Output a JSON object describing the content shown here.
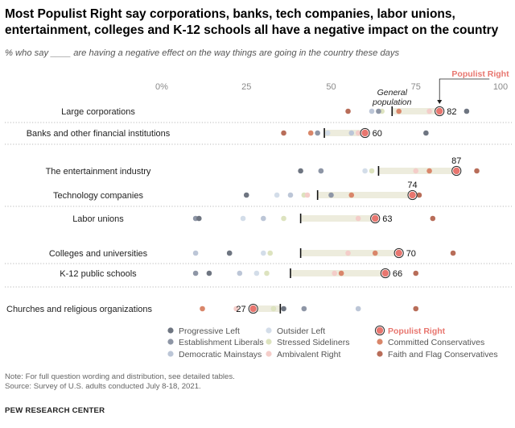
{
  "chart_data": {
    "type": "dot",
    "title": "Most Populist Right say corporations, banks, tech companies, labor unions, entertainment, colleges and K-12 schools all have a negative impact on the country",
    "subtitle": "% who say ____ are having a negative effect on the way things are going in the country these days",
    "x_ticks": [
      "0%",
      "25",
      "50",
      "75",
      "100"
    ],
    "xlim": [
      0,
      100
    ],
    "annotations": {
      "general_population": "General population",
      "populist_right": "Populist Right"
    },
    "colors": {
      "Progressive Left": "#6e7581",
      "Establishment Liberals": "#8e96a6",
      "Democratic Mainstays": "#bcc6d7",
      "Outsider Left": "#d3dde9",
      "Stressed Sideliners": "#dde3bf",
      "Ambivalent Right": "#f4cdc9",
      "Populist Right": "#e8766f",
      "Committed Conservatives": "#d9866a",
      "Faith and Flag Conservatives": "#b86d59"
    },
    "legend": [
      "Progressive Left",
      "Outsider Left",
      "Populist Right",
      "Establishment Liberals",
      "Stressed Sideliners",
      "Committed Conservatives",
      "Democratic Mainstays",
      "Ambivalent Right",
      "Faith and Flag Conservatives"
    ],
    "categories": [
      {
        "label": "Large corporations",
        "general": 68,
        "populist_right": 82,
        "value_label": "82",
        "points": {
          "Progressive Left": 90,
          "Establishment Liberals": 64,
          "Democratic Mainstays": 62,
          "Outsider Left": 79,
          "Stressed Sideliners": 65,
          "Ambivalent Right": 79,
          "Committed Conservatives": 70,
          "Faith and Flag Conservatives": 55
        }
      },
      {
        "label": "Banks and other financial institutions",
        "general": 48,
        "populist_right": 60,
        "value_label": "60",
        "points": {
          "Progressive Left": 78,
          "Establishment Liberals": 46,
          "Democratic Mainstays": 56,
          "Outsider Left": 49,
          "Stressed Sideliners": 44,
          "Ambivalent Right": 58,
          "Committed Conservatives": 44,
          "Faith and Flag Conservatives": 36
        }
      },
      {
        "label": "The entertainment industry",
        "general": 64,
        "populist_right": 87,
        "value_label": "87",
        "points": {
          "Progressive Left": 41,
          "Establishment Liberals": 47,
          "Democratic Mainstays": 47,
          "Outsider Left": 60,
          "Stressed Sideliners": 62,
          "Ambivalent Right": 75,
          "Committed Conservatives": 79,
          "Faith and Flag Conservatives": 93
        }
      },
      {
        "label": "Technology companies",
        "general": 46,
        "populist_right": 74,
        "value_label": "74",
        "points": {
          "Progressive Left": 25,
          "Establishment Liberals": 50,
          "Democratic Mainstays": 38,
          "Outsider Left": 34,
          "Stressed Sideliners": 42,
          "Ambivalent Right": 43,
          "Committed Conservatives": 56,
          "Faith and Flag Conservatives": 76
        }
      },
      {
        "label": "Labor unions",
        "general": 41,
        "populist_right": 63,
        "value_label": "63",
        "points": {
          "Progressive Left": 11,
          "Establishment Liberals": 10,
          "Democratic Mainstays": 30,
          "Outsider Left": 24,
          "Stressed Sideliners": 36,
          "Ambivalent Right": 58,
          "Committed Conservatives": 63,
          "Faith and Flag Conservatives": 80
        }
      },
      {
        "label": "Colleges and universities",
        "general": 41,
        "populist_right": 70,
        "value_label": "70",
        "points": {
          "Progressive Left": 20,
          "Establishment Liberals": 20,
          "Democratic Mainstays": 10,
          "Outsider Left": 30,
          "Stressed Sideliners": 32,
          "Ambivalent Right": 55,
          "Committed Conservatives": 63,
          "Faith and Flag Conservatives": 86
        }
      },
      {
        "label": "K-12 public schools",
        "general": 38,
        "populist_right": 66,
        "value_label": "66",
        "points": {
          "Progressive Left": 14,
          "Establishment Liberals": 10,
          "Democratic Mainstays": 23,
          "Outsider Left": 28,
          "Stressed Sideliners": 31,
          "Ambivalent Right": 51,
          "Committed Conservatives": 53,
          "Faith and Flag Conservatives": 75
        }
      },
      {
        "label": "Churches and religious organizations",
        "general": 35,
        "populist_right": 27,
        "value_label": "27",
        "points": {
          "Progressive Left": 36,
          "Establishment Liberals": 42,
          "Democratic Mainstays": 58,
          "Outsider Left": 33,
          "Stressed Sideliners": 33,
          "Ambivalent Right": 22,
          "Committed Conservatives": 12,
          "Faith and Flag Conservatives": 75
        }
      }
    ],
    "notes": [
      "Note: For full question wording and distribution, see detailed tables.",
      "Source: Survey of U.S. adults conducted July 8-18, 2021."
    ],
    "source_org": "PEW RESEARCH CENTER"
  }
}
